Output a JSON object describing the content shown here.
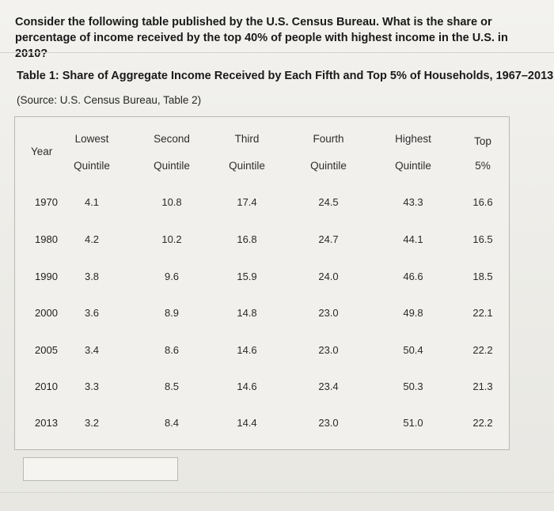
{
  "question": "Consider the following table published by the U.S. Census Bureau. What is the share or percentage of income received by the top 40% of people with highest income in the U.S. in 2010?",
  "table": {
    "title": "Table 1: Share of Aggregate Income Received by Each Fifth and Top 5% of Households, 1967–2013",
    "source": "(Source: U.S. Census Bureau, Table 2)",
    "year_header": "Year",
    "columns": [
      {
        "line1": "Lowest",
        "line2": "Quintile"
      },
      {
        "line1": "Second",
        "line2": "Quintile"
      },
      {
        "line1": "Third",
        "line2": "Quintile"
      },
      {
        "line1": "Fourth",
        "line2": "Quintile"
      },
      {
        "line1": "Highest",
        "line2": "Quintile"
      },
      {
        "line1": "Top",
        "line2": "5%"
      }
    ],
    "rows": [
      {
        "year": "1970",
        "values": [
          "4.1",
          "10.8",
          "17.4",
          "24.5",
          "43.3",
          "16.6"
        ]
      },
      {
        "year": "1980",
        "values": [
          "4.2",
          "10.2",
          "16.8",
          "24.7",
          "44.1",
          "16.5"
        ]
      },
      {
        "year": "1990",
        "values": [
          "3.8",
          "9.6",
          "15.9",
          "24.0",
          "46.6",
          "18.5"
        ]
      },
      {
        "year": "2000",
        "values": [
          "3.6",
          "8.9",
          "14.8",
          "23.0",
          "49.8",
          "22.1"
        ]
      },
      {
        "year": "2005",
        "values": [
          "3.4",
          "8.6",
          "14.6",
          "23.0",
          "50.4",
          "22.2"
        ]
      },
      {
        "year": "2010",
        "values": [
          "3.3",
          "8.5",
          "14.6",
          "23.4",
          "50.3",
          "21.3"
        ]
      },
      {
        "year": "2013",
        "values": [
          "3.2",
          "8.4",
          "14.4",
          "23.0",
          "51.0",
          "22.2"
        ]
      }
    ]
  },
  "answer": {
    "value": "",
    "placeholder": ""
  }
}
